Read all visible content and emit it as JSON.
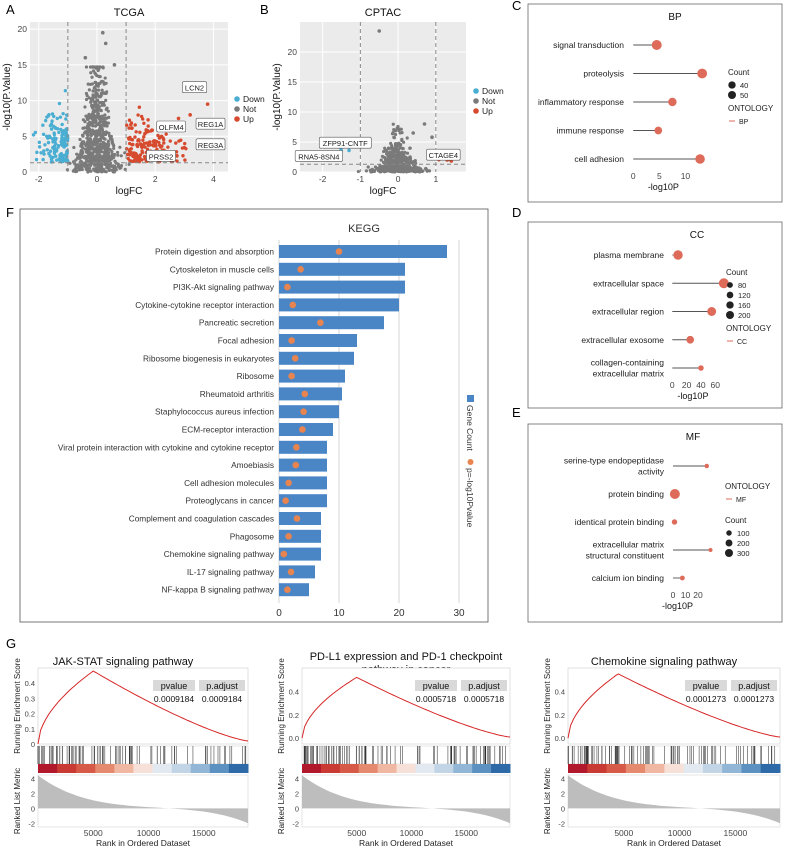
{
  "panels": {
    "A": "A",
    "B": "B",
    "C": "C",
    "D": "D",
    "E": "E",
    "F": "F",
    "G": "G"
  },
  "chart_data": [
    {
      "id": "A",
      "type": "scatter",
      "title": "TCGA",
      "xlabel": "logFC",
      "ylabel": "-log10(P.Value)",
      "xlim": [
        -2.3,
        4.5
      ],
      "ylim": [
        0,
        21
      ],
      "xticks": [
        -2,
        0,
        2,
        4
      ],
      "yticks": [
        0,
        5,
        10,
        15,
        20
      ],
      "thresholds": {
        "logfc": [
          -1,
          1
        ],
        "p": 1.3
      },
      "legend": [
        "Down",
        "Not",
        "Up"
      ],
      "colors": {
        "Down": "#4aaed3",
        "Not": "#7a7a7a",
        "Up": "#d64a2e"
      },
      "labels": [
        {
          "text": "LCN2",
          "x": 3.35,
          "y": 11.8
        },
        {
          "text": "OLFM4",
          "x": 2.55,
          "y": 6.3
        },
        {
          "text": "REG1A",
          "x": 3.9,
          "y": 6.7
        },
        {
          "text": "REG3A",
          "x": 3.9,
          "y": 3.8
        },
        {
          "text": "PRSS2",
          "x": 2.2,
          "y": 2.2
        }
      ]
    },
    {
      "id": "B",
      "type": "scatter",
      "title": "CPTAC",
      "xlabel": "logFC",
      "ylabel": "-log10(P.Value)",
      "xlim": [
        -2.6,
        1.8
      ],
      "ylim": [
        0,
        25
      ],
      "xticks": [
        -2,
        -1,
        0,
        1
      ],
      "yticks": [
        0,
        5,
        10,
        15,
        20
      ],
      "thresholds": {
        "logfc": [
          -1,
          1
        ],
        "p": 1.3
      },
      "legend": [
        "Down",
        "Not",
        "Up"
      ],
      "colors": {
        "Down": "#4aaed3",
        "Not": "#7a7a7a",
        "Up": "#d64a2e"
      },
      "labels": [
        {
          "text": "ZFP91-CNTF",
          "x": -1.4,
          "y": 4.8
        },
        {
          "text": "RNA5-8SN4",
          "x": -2.1,
          "y": 2.6
        },
        {
          "text": "CTAGE4",
          "x": 1.2,
          "y": 2.8
        }
      ]
    },
    {
      "id": "C",
      "type": "lollipop",
      "title": "BP",
      "xlabel": "-log10P",
      "xlim": [
        -1,
        17
      ],
      "xticks": [
        0,
        5,
        10
      ],
      "categories": [
        "signal transduction",
        "proteolysis",
        "inflammatory response",
        "immune response",
        "cell adhesion"
      ],
      "values": [
        4.5,
        13.2,
        7.5,
        4.8,
        12.8
      ],
      "counts": [
        50,
        48,
        32,
        25,
        45
      ],
      "legend_title": "Count",
      "legend_sizes": [
        40,
        50
      ],
      "ontology_title": "ONTOLOGY",
      "ontology": "BP"
    },
    {
      "id": "D",
      "type": "lollipop",
      "title": "CC",
      "xlabel": "-log10P",
      "xlim": [
        -6,
        75
      ],
      "xticks": [
        0,
        20,
        40,
        60
      ],
      "categories": [
        "plasma membrane",
        "extracellular space",
        "extracellular region",
        "extracellular exosome",
        "collagen-containing extracellular matrix"
      ],
      "values": [
        8,
        72,
        55,
        25,
        40
      ],
      "counts": [
        170,
        200,
        150,
        100,
        40
      ],
      "legend_title": "Count",
      "legend_sizes": [
        80,
        120,
        160,
        200
      ],
      "ontology_title": "ONTOLOGY",
      "ontology": "CC"
    },
    {
      "id": "E",
      "type": "lollipop",
      "title": "MF",
      "xlabel": "-log10P",
      "xlim": [
        -4,
        36
      ],
      "xticks": [
        0,
        10,
        20
      ],
      "categories": [
        "serine-type endopeptidase activity",
        "protein binding",
        "identical protein binding",
        "extracellular matrix structural constituent",
        "calcium ion binding"
      ],
      "values": [
        27,
        1.5,
        1.2,
        30,
        7.5
      ],
      "counts": [
        30,
        320,
        60,
        20,
        40
      ],
      "legend_title": "Count",
      "legend_sizes": [
        100,
        200,
        300
      ],
      "ontology_title": "ONTOLOGY",
      "ontology": "MF"
    },
    {
      "id": "F",
      "type": "bar",
      "title": "KEGG",
      "categories": [
        "Protein digestion and absorption",
        "Cytoskeleton in muscle cells",
        "PI3K-Akt signaling pathway",
        "Cytokine-cytokine receptor interaction",
        "Pancreatic secretion",
        "Focal adhesion",
        "Ribosome biogenesis in eukaryotes",
        "Ribosome",
        "Rheumatoid arthritis",
        "Staphylococcus aureus infection",
        "ECM-receptor interaction",
        "Viral protein interaction with cytokine and cytokine receptor",
        "Amoebiasis",
        "Cell adhesion molecules",
        "Proteoglycans in cancer",
        "Complement and coagulation cascades",
        "Phagosome",
        "Chemokine signaling pathway",
        "IL-17 signaling pathway",
        "NF-kappa B signaling pathway"
      ],
      "series": [
        {
          "name": "Gene Count",
          "values": [
            28,
            21,
            21,
            20,
            17.5,
            13,
            12.5,
            11,
            10.5,
            10,
            9,
            8,
            8,
            8,
            8,
            7,
            7,
            7,
            6,
            5
          ],
          "color": "#4a86c6"
        },
        {
          "name": "p=-log10Pvalue",
          "values": [
            10,
            3.6,
            1.4,
            2.3,
            6.9,
            2.1,
            2.7,
            2.1,
            4.3,
            4.1,
            3.9,
            2.9,
            2.8,
            1.6,
            1.1,
            3.0,
            1.6,
            0.8,
            2.0,
            1.4
          ],
          "color": "#e8844f"
        }
      ],
      "xlim": [
        0,
        31
      ],
      "xticks": [
        0,
        10,
        20,
        30
      ],
      "legend": [
        "Gene Count",
        "p=-log10Pvalue"
      ]
    },
    {
      "id": "G",
      "type": "line",
      "charts": [
        {
          "title": "JAK-STAT signaling pathway",
          "pvalue": "0.0009184",
          "padjust": "0.0009184",
          "ylim": [
            0,
            0.5
          ],
          "yticks": [
            "0",
            "0.1",
            "0.2",
            "0.3",
            "0.4"
          ],
          "es_peak_x": 5000,
          "es_peak_y": 0.48,
          "es_end": 0.02
        },
        {
          "title": "PD-L1 expression and PD-1 checkpoint pathway in cancer",
          "pvalue": "0.0005718",
          "padjust": "0.0005718",
          "ylim": [
            -0.05,
            0.6
          ],
          "yticks": [
            "0.0",
            "0.2",
            "0.4"
          ],
          "es_peak_x": 5000,
          "es_peak_y": 0.52,
          "es_end": 0.01
        },
        {
          "title": "Chemokine signaling pathway",
          "pvalue": "0.0001273",
          "padjust": "0.0001273",
          "ylim": [
            -0.05,
            0.6
          ],
          "yticks": [
            "0.0",
            "0.2",
            "0.4"
          ],
          "es_peak_x": 4500,
          "es_peak_y": 0.55,
          "es_end": 0.01
        }
      ],
      "xlabel": "Rank in Ordered Dataset",
      "ylabel_top": "Running Enrichment Score",
      "ylabel_bottom": "Ranked List Metric",
      "xticks": [
        5000,
        10000,
        15000
      ],
      "xmax": 19000,
      "metric_ticks": [
        4,
        2,
        0,
        -2
      ],
      "pvalue_header": "pvalue",
      "padjust_header": "p.adjust"
    }
  ]
}
